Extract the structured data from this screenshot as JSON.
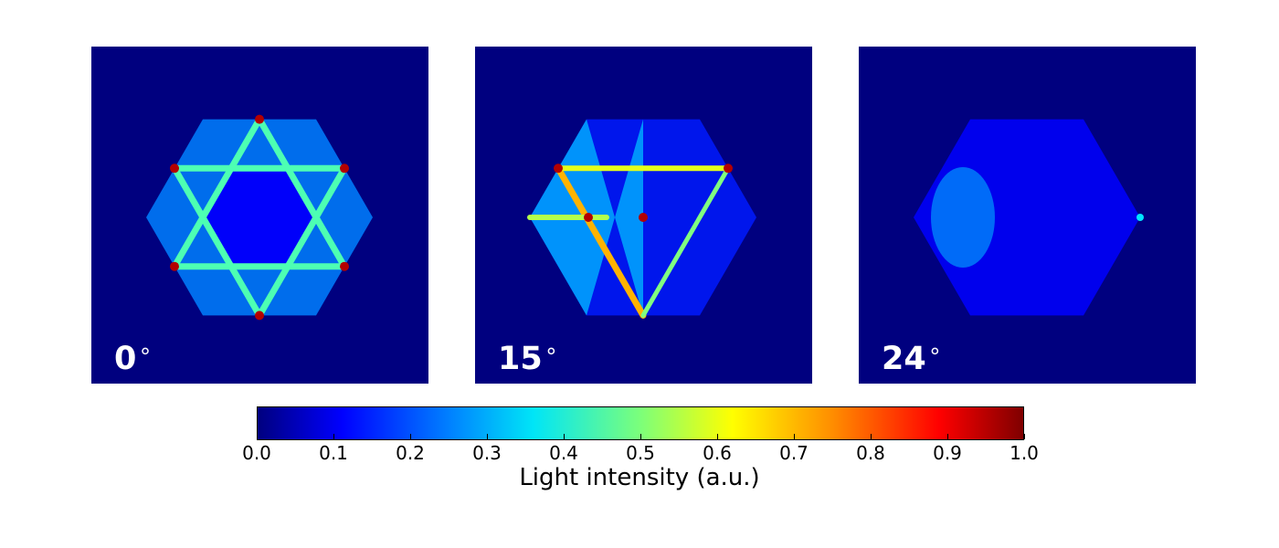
{
  "chart_data": [
    {
      "type": "heatmap",
      "panel_label": "0",
      "degree_symbol": "∘",
      "colormap": "jet",
      "value_range": [
        0.0,
        1.0
      ],
      "background_value": 0.0,
      "hexagon_fill_value": 0.25,
      "star_edge_value": 0.45,
      "hotspot_value": 0.95
    },
    {
      "type": "heatmap",
      "panel_label": "15",
      "degree_symbol": "∘",
      "colormap": "jet",
      "value_range": [
        0.0,
        1.0
      ],
      "background_value": 0.0,
      "hexagon_fill_value": 0.15,
      "star_edge_value": 0.6,
      "hotspot_value": 0.95
    },
    {
      "type": "heatmap",
      "panel_label": "24",
      "degree_symbol": "∘",
      "colormap": "jet",
      "value_range": [
        0.0,
        1.0
      ],
      "background_value": 0.0,
      "hexagon_fill_value": 0.12,
      "star_edge_value": 0.15,
      "hotspot_value": 0.3
    }
  ],
  "colorbar": {
    "label": "Light intensity (a.u.)",
    "ticks": [
      "0.0",
      "0.1",
      "0.2",
      "0.3",
      "0.4",
      "0.5",
      "0.6",
      "0.7",
      "0.8",
      "0.9",
      "1.0"
    ],
    "range": [
      0.0,
      1.0
    ],
    "colors": {
      "v00": "#00007f",
      "v10": "#0000ff",
      "v20": "#0080ff",
      "v30": "#00e5f7",
      "v50": "#7cff7a",
      "v60": "#ffff00",
      "v75": "#ff8e00",
      "v90": "#ff0000",
      "v100": "#7f0000"
    }
  }
}
